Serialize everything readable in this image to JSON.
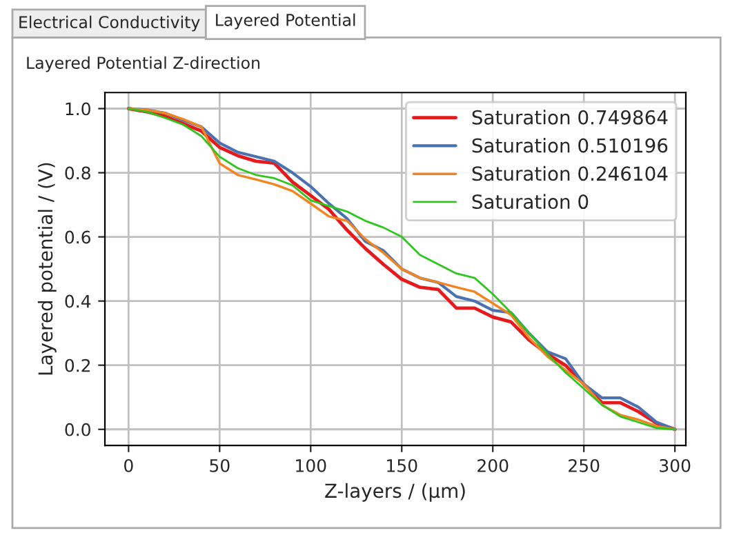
{
  "chart_data": {
    "type": "line",
    "title": "Layered Potential Z-direction",
    "annotations": [
      "Electrical Conductivity",
      "Layered Potential"
    ],
    "xlabel": "Z-layers / (µm)",
    "ylabel": "Layered potential / (V)",
    "x": [
      0,
      10,
      20,
      30,
      40,
      50,
      60,
      70,
      80,
      90,
      100,
      110,
      120,
      130,
      140,
      150,
      160,
      170,
      180,
      190,
      200,
      210,
      220,
      230,
      240,
      250,
      260,
      270,
      280,
      290,
      300
    ],
    "series": [
      {
        "name": "Saturation 0.749864",
        "color": "#e41a1c",
        "values": [
          1.0,
          0.99,
          0.976,
          0.953,
          0.93,
          0.879,
          0.853,
          0.836,
          0.83,
          0.771,
          0.729,
          0.686,
          0.621,
          0.564,
          0.514,
          0.468,
          0.443,
          0.436,
          0.378,
          0.378,
          0.35,
          0.335,
          0.278,
          0.235,
          0.199,
          0.141,
          0.083,
          0.083,
          0.055,
          0.019,
          0.0
        ]
      },
      {
        "name": "Saturation 0.510196",
        "color": "#4a72b0",
        "values": [
          1.0,
          0.996,
          0.986,
          0.964,
          0.943,
          0.893,
          0.864,
          0.85,
          0.836,
          0.8,
          0.757,
          0.704,
          0.657,
          0.586,
          0.557,
          0.5,
          0.472,
          0.458,
          0.414,
          0.4,
          0.371,
          0.364,
          0.299,
          0.242,
          0.22,
          0.141,
          0.098,
          0.098,
          0.069,
          0.022,
          0.0
        ]
      },
      {
        "name": "Saturation 0.246104",
        "color": "#f28522",
        "values": [
          1.0,
          0.996,
          0.986,
          0.967,
          0.943,
          0.829,
          0.793,
          0.779,
          0.764,
          0.743,
          0.704,
          0.664,
          0.65,
          0.593,
          0.55,
          0.5,
          0.472,
          0.458,
          0.443,
          0.429,
          0.393,
          0.357,
          0.285,
          0.227,
          0.184,
          0.141,
          0.076,
          0.045,
          0.03,
          0.01,
          0.0
        ]
      },
      {
        "name": "Saturation 0",
        "color": "#2ec51e",
        "values": [
          1.0,
          0.99,
          0.971,
          0.95,
          0.914,
          0.85,
          0.814,
          0.793,
          0.783,
          0.761,
          0.714,
          0.696,
          0.679,
          0.65,
          0.629,
          0.6,
          0.544,
          0.515,
          0.486,
          0.472,
          0.422,
          0.364,
          0.3,
          0.235,
          0.177,
          0.127,
          0.076,
          0.04,
          0.022,
          0.004,
          0.0
        ]
      }
    ],
    "xlim": [
      -13,
      306
    ],
    "ylim": [
      -0.05,
      1.05
    ],
    "xticks": [
      0,
      50,
      100,
      150,
      200,
      250,
      300
    ],
    "yticks": [
      {
        "value": 0,
        "label": "0.0"
      },
      {
        "value": 0.2,
        "label": "0.2"
      },
      {
        "value": 0.4,
        "label": "0.4"
      },
      {
        "value": 0.6,
        "label": "0.6"
      },
      {
        "value": 0.8,
        "label": "0.8"
      },
      {
        "value": 1.0,
        "label": "1.0"
      }
    ],
    "grid": true,
    "legend": "top right",
    "line_style": "solid",
    "marker": "none"
  }
}
